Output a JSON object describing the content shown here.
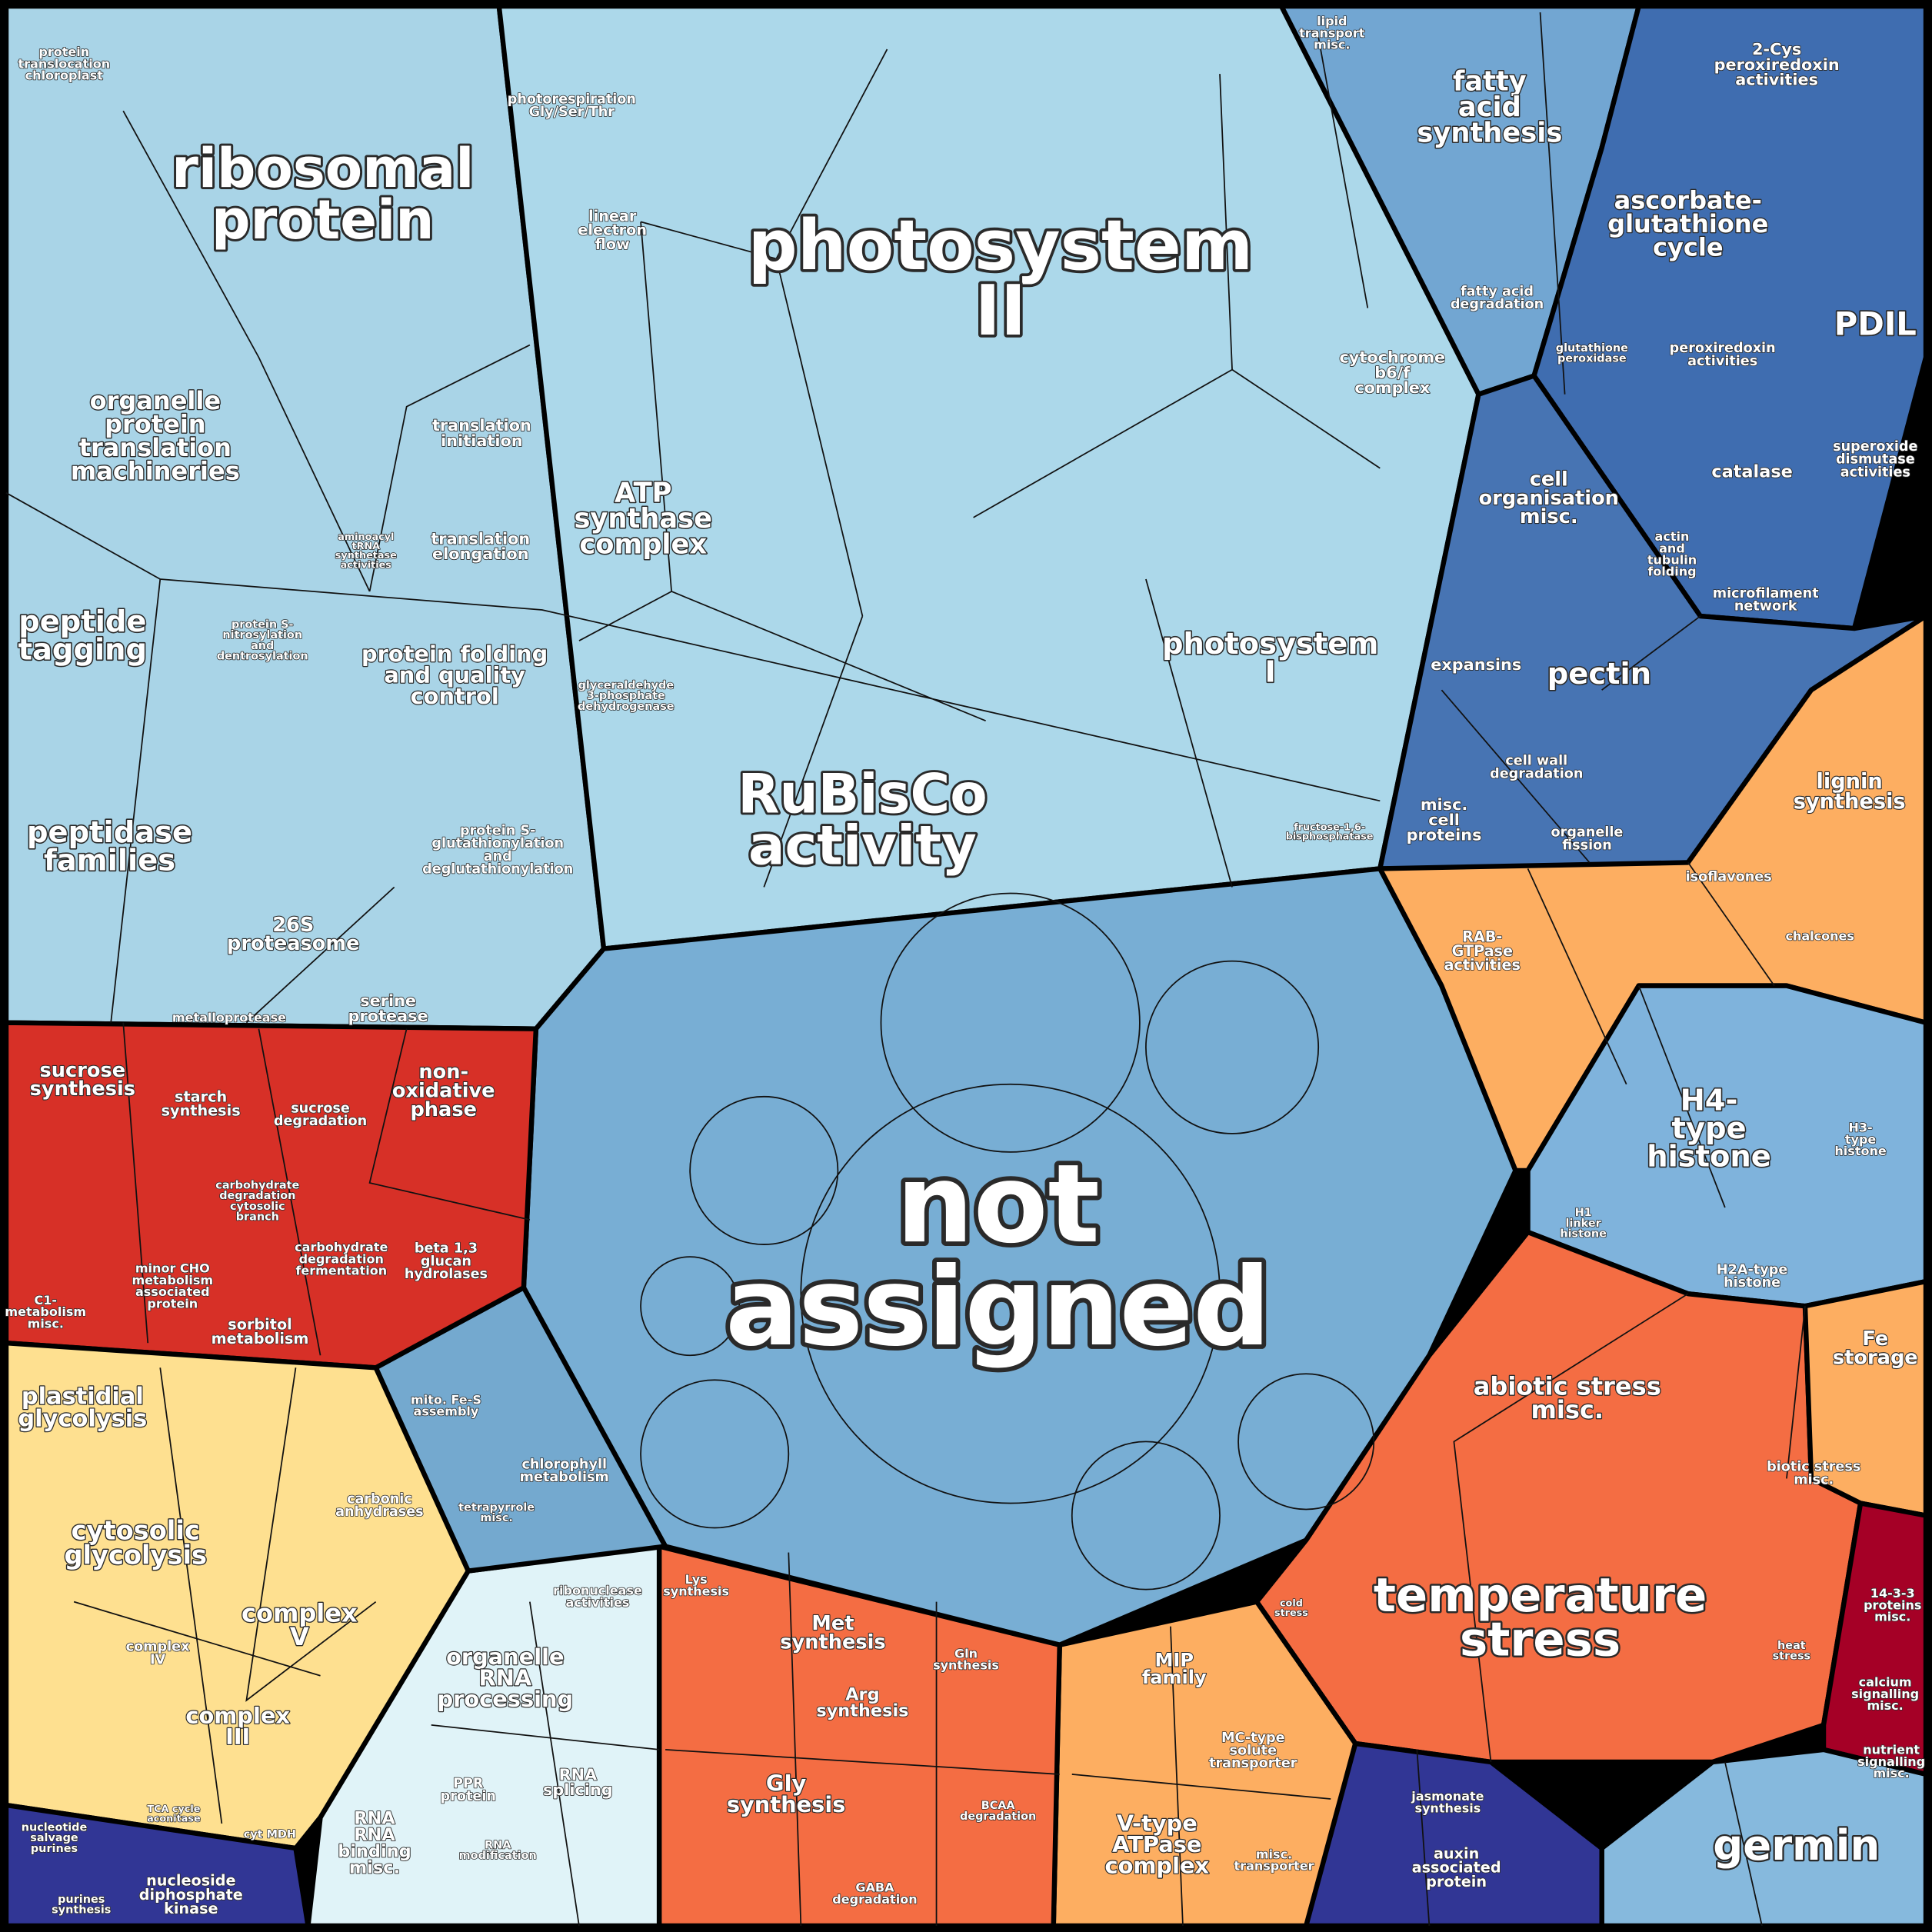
{
  "labels": [
    {
      "lines": [
        "protein",
        "translocation",
        "chloroplast"
      ]
    },
    {
      "lines": [
        "ribosomal",
        "protein"
      ]
    },
    {
      "lines": [
        "organelle",
        "protein",
        "translation",
        "machineries"
      ]
    },
    {
      "lines": [
        "translation",
        "initiation"
      ]
    },
    {
      "lines": [
        "translation",
        "elongation"
      ]
    },
    {
      "lines": [
        "aminoacyl",
        "tRNA",
        "synthetase",
        "activities"
      ]
    },
    {
      "lines": [
        "peptide",
        "tagging"
      ]
    },
    {
      "lines": [
        "protein S-",
        "nitrosylation",
        "and",
        "dentrosylation"
      ]
    },
    {
      "lines": [
        "protein folding",
        "and quality",
        "control"
      ]
    },
    {
      "lines": [
        "peptidase",
        "families"
      ]
    },
    {
      "lines": [
        "protein S-",
        "glutathionylation",
        "and",
        "deglutathionylation"
      ]
    },
    {
      "lines": [
        "26S",
        "proteasome"
      ]
    },
    {
      "lines": [
        "serine",
        "protease"
      ]
    },
    {
      "lines": [
        "metalloprotease"
      ]
    },
    {
      "lines": [
        "photorespiration",
        "Gly/Ser/Thr"
      ]
    },
    {
      "lines": [
        "linear",
        "electron",
        "flow"
      ]
    },
    {
      "lines": [
        "photosystem",
        "II"
      ]
    },
    {
      "lines": [
        "cytochrome",
        "b6/f",
        "complex"
      ]
    },
    {
      "lines": [
        "ATP",
        "synthase",
        "complex"
      ]
    },
    {
      "lines": [
        "photosystem",
        "I"
      ]
    },
    {
      "lines": [
        "glyceraldehyde",
        "3-phosphate",
        "dehydrogenase"
      ]
    },
    {
      "lines": [
        "RuBisCo",
        "activity"
      ]
    },
    {
      "lines": [
        "fructose-1,6-",
        "bisphosphatase"
      ]
    },
    {
      "lines": [
        "lipid",
        "transport",
        "misc."
      ]
    },
    {
      "lines": [
        "fatty",
        "acid",
        "synthesis"
      ]
    },
    {
      "lines": [
        "fatty acid",
        "degradation"
      ]
    },
    {
      "lines": [
        "2-Cys",
        "peroxiredoxin",
        "activities"
      ]
    },
    {
      "lines": [
        "ascorbate-",
        "glutathione",
        "cycle"
      ]
    },
    {
      "lines": [
        "PDIL"
      ]
    },
    {
      "lines": [
        "glutathione",
        "peroxidase"
      ]
    },
    {
      "lines": [
        "peroxiredoxin",
        "activities"
      ]
    },
    {
      "lines": [
        "superoxide",
        "dismutase",
        "activities"
      ]
    },
    {
      "lines": [
        "catalase"
      ]
    },
    {
      "lines": [
        "cell",
        "organisation",
        "misc."
      ]
    },
    {
      "lines": [
        "actin",
        "and",
        "tubulin",
        "folding"
      ]
    },
    {
      "lines": [
        "microfilament",
        "network"
      ]
    },
    {
      "lines": [
        "expansins"
      ]
    },
    {
      "lines": [
        "pectin"
      ]
    },
    {
      "lines": [
        "cell wall",
        "degradation"
      ]
    },
    {
      "lines": [
        "misc.",
        "cell",
        "proteins"
      ]
    },
    {
      "lines": [
        "organelle",
        "fission"
      ]
    },
    {
      "lines": [
        "lignin",
        "synthesis"
      ]
    },
    {
      "lines": [
        "isoflavones"
      ]
    },
    {
      "lines": [
        "RAB-",
        "GTPase",
        "activities"
      ]
    },
    {
      "lines": [
        "chalcones"
      ]
    },
    {
      "lines": [
        "H4-",
        "type",
        "histone"
      ]
    },
    {
      "lines": [
        "H1",
        "linker",
        "histone"
      ]
    },
    {
      "lines": [
        "H2A-type",
        "histone"
      ]
    },
    {
      "lines": [
        "H3-",
        "type",
        "histone"
      ]
    },
    {
      "lines": [
        "not",
        "assigned"
      ]
    },
    {
      "lines": [
        "sucrose",
        "synthesis"
      ]
    },
    {
      "lines": [
        "starch",
        "synthesis"
      ]
    },
    {
      "lines": [
        "sucrose",
        "degradation"
      ]
    },
    {
      "lines": [
        "non-",
        "oxidative",
        "phase"
      ]
    },
    {
      "lines": [
        "carbohydrate",
        "degradation",
        "cytosolic",
        "branch"
      ]
    },
    {
      "lines": [
        "carbohydrate",
        "degradation",
        "fermentation"
      ]
    },
    {
      "lines": [
        "beta 1,3",
        "glucan",
        "hydrolases"
      ]
    },
    {
      "lines": [
        "minor CHO",
        "metabolism",
        "associated",
        "protein"
      ]
    },
    {
      "lines": [
        "sorbitol",
        "metabolism"
      ]
    },
    {
      "lines": [
        "C1-",
        "metabolism",
        "misc."
      ]
    },
    {
      "lines": [
        "plastidial",
        "glycolysis"
      ]
    },
    {
      "lines": [
        "cytosolic",
        "glycolysis"
      ]
    },
    {
      "lines": [
        "complex",
        "V"
      ]
    },
    {
      "lines": [
        "complex",
        "IV"
      ]
    },
    {
      "lines": [
        "complex",
        "III"
      ]
    },
    {
      "lines": [
        "carbonic",
        "anhydrases"
      ]
    },
    {
      "lines": [
        "mito. Fe-S",
        "assembly"
      ]
    },
    {
      "lines": [
        "chlorophyll",
        "metabolism"
      ]
    },
    {
      "lines": [
        "tetrapyrrole",
        "misc."
      ]
    },
    {
      "lines": [
        "organelle",
        "RNA",
        "processing"
      ]
    },
    {
      "lines": [
        "ribonuclease",
        "activities"
      ]
    },
    {
      "lines": [
        "RNA",
        "splicing"
      ]
    },
    {
      "lines": [
        "PPR",
        "protein"
      ]
    },
    {
      "lines": [
        "RNA",
        "RNA",
        "binding",
        "misc."
      ]
    },
    {
      "lines": [
        "RNA",
        "modification"
      ]
    },
    {
      "lines": [
        "nucleotide",
        "salvage",
        "purines"
      ]
    },
    {
      "lines": [
        "nucleoside",
        "diphosphate",
        "kinase"
      ]
    },
    {
      "lines": [
        "purines",
        "synthesis"
      ]
    },
    {
      "lines": [
        "Lys",
        "synthesis"
      ]
    },
    {
      "lines": [
        "Met",
        "synthesis"
      ]
    },
    {
      "lines": [
        "Gln",
        "synthesis"
      ]
    },
    {
      "lines": [
        "Arg",
        "synthesis"
      ]
    },
    {
      "lines": [
        "Gly",
        "synthesis"
      ]
    },
    {
      "lines": [
        "BCAA",
        "degradation"
      ]
    },
    {
      "lines": [
        "GABA",
        "degradation"
      ]
    },
    {
      "lines": [
        "MIP",
        "family"
      ]
    },
    {
      "lines": [
        "MC-type",
        "solute",
        "transporter"
      ]
    },
    {
      "lines": [
        "V-type",
        "ATPase",
        "complex"
      ]
    },
    {
      "lines": [
        "misc.",
        "transporter"
      ]
    },
    {
      "lines": [
        "abiotic stress",
        "misc."
      ]
    },
    {
      "lines": [
        "temperature",
        "stress"
      ]
    },
    {
      "lines": [
        "biotic stress",
        "misc."
      ]
    },
    {
      "lines": [
        "Fe",
        "storage"
      ]
    },
    {
      "lines": [
        "14-3-3",
        "proteins",
        "misc."
      ]
    },
    {
      "lines": [
        "calcium",
        "signalling",
        "misc."
      ]
    },
    {
      "lines": [
        "nutrient",
        "signalling",
        "misc."
      ]
    },
    {
      "lines": [
        "jasmonate",
        "synthesis"
      ]
    },
    {
      "lines": [
        "auxin",
        "associated",
        "protein"
      ]
    },
    {
      "lines": [
        "germin"
      ]
    },
    {
      "lines": [
        "heat",
        "stress"
      ]
    },
    {
      "lines": [
        "cold",
        "stress"
      ]
    },
    {
      "lines": [
        "cyt MDH"
      ]
    },
    {
      "lines": [
        "TCA cycle",
        "aconitase"
      ]
    }
  ]
}
